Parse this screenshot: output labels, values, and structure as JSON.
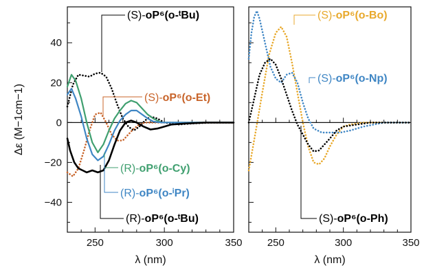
{
  "chart_data": [
    {
      "type": "line",
      "panel": "left",
      "xlabel": "λ (nm)",
      "ylabel": "Δε (M−1cm−1)",
      "xlim": [
        230,
        350
      ],
      "ylim": [
        -55,
        58
      ],
      "x_ticks": [
        "250",
        "300",
        "350"
      ],
      "y_ticks": [
        "40",
        "20",
        "0",
        "−20",
        "−40"
      ],
      "series": [
        {
          "key": "S_tBu",
          "color": "#000000",
          "style": "dotted",
          "annotation": {
            "prefix": "(S)-",
            "bold": "oP⁶(o-ᵗBu)",
            "color": "#000000"
          },
          "points": [
            [
              230,
              8
            ],
            [
              234,
              19
            ],
            [
              238,
              24
            ],
            [
              242,
              23.5
            ],
            [
              246,
              23
            ],
            [
              250,
              24.5
            ],
            [
              254,
              25
            ],
            [
              258,
              23
            ],
            [
              262,
              17
            ],
            [
              266,
              9
            ],
            [
              270,
              2
            ],
            [
              274,
              -2
            ],
            [
              278,
              -4
            ],
            [
              282,
              -2
            ],
            [
              286,
              1
            ],
            [
              290,
              3
            ],
            [
              295,
              2
            ],
            [
              300,
              0
            ],
            [
              310,
              -1
            ],
            [
              320,
              -0.5
            ],
            [
              335,
              0
            ],
            [
              350,
              0
            ]
          ]
        },
        {
          "key": "S_Et",
          "color": "#c8642a",
          "style": "dotted",
          "annotation": {
            "prefix": "(S)-",
            "bold": "oP⁶(o-Et)",
            "color": "#c8642a"
          },
          "points": [
            [
              230,
              -25
            ],
            [
              234,
              -27
            ],
            [
              238,
              -23
            ],
            [
              242,
              -14
            ],
            [
              246,
              -4
            ],
            [
              250,
              4
            ],
            [
              254,
              5
            ],
            [
              258,
              0
            ],
            [
              262,
              -6
            ],
            [
              266,
              -9
            ],
            [
              270,
              -9
            ],
            [
              274,
              -6
            ],
            [
              278,
              -3
            ],
            [
              282,
              -1
            ],
            [
              286,
              0
            ],
            [
              295,
              0
            ],
            [
              310,
              0
            ],
            [
              330,
              0
            ],
            [
              350,
              0
            ]
          ]
        },
        {
          "key": "R_Cy",
          "color": "#3f9f6f",
          "style": "solid",
          "annotation": {
            "prefix": "(R)-",
            "bold": "oP⁶(o-Cy)",
            "color": "#3f9f6f"
          },
          "points": [
            [
              230,
              18
            ],
            [
              233,
              24
            ],
            [
              236,
              21
            ],
            [
              240,
              12
            ],
            [
              244,
              0
            ],
            [
              248,
              -10
            ],
            [
              252,
              -15
            ],
            [
              256,
              -11
            ],
            [
              260,
              -4
            ],
            [
              264,
              2
            ],
            [
              268,
              6
            ],
            [
              272,
              9.5
            ],
            [
              276,
              11
            ],
            [
              280,
              10
            ],
            [
              284,
              7
            ],
            [
              288,
              4
            ],
            [
              292,
              2
            ],
            [
              298,
              0
            ],
            [
              310,
              0
            ],
            [
              330,
              0
            ],
            [
              350,
              0
            ]
          ]
        },
        {
          "key": "R_iPr",
          "color": "#3f86c4",
          "style": "solid",
          "annotation": {
            "prefix": "(R)-",
            "bold": "oP⁶(o-ⁱPr)",
            "color": "#3f86c4"
          },
          "points": [
            [
              230,
              14
            ],
            [
              233,
              17
            ],
            [
              236,
              12
            ],
            [
              240,
              3
            ],
            [
              244,
              -8
            ],
            [
              248,
              -16
            ],
            [
              252,
              -19
            ],
            [
              256,
              -17
            ],
            [
              260,
              -11
            ],
            [
              264,
              -4
            ],
            [
              268,
              1
            ],
            [
              272,
              4
            ],
            [
              276,
              6
            ],
            [
              280,
              6
            ],
            [
              284,
              4
            ],
            [
              288,
              2
            ],
            [
              292,
              0.5
            ],
            [
              298,
              0
            ],
            [
              310,
              0
            ],
            [
              330,
              0
            ],
            [
              350,
              0
            ]
          ]
        },
        {
          "key": "R_tBu",
          "color": "#000000",
          "style": "solid",
          "annotation": {
            "prefix": "(R)-",
            "bold": "oP⁶(o-ᵗBu)",
            "color": "#000000"
          },
          "points": [
            [
              230,
              -8
            ],
            [
              232,
              -14
            ],
            [
              235,
              -20
            ],
            [
              238,
              -23
            ],
            [
              241,
              -24
            ],
            [
              244,
              -25
            ],
            [
              248,
              -24
            ],
            [
              252,
              -25
            ],
            [
              256,
              -24
            ],
            [
              260,
              -19
            ],
            [
              264,
              -11
            ],
            [
              268,
              -4
            ],
            [
              272,
              0
            ],
            [
              276,
              1
            ],
            [
              280,
              0
            ],
            [
              285,
              -2
            ],
            [
              290,
              -3.5
            ],
            [
              295,
              -3
            ],
            [
              300,
              -2
            ],
            [
              305,
              -1
            ],
            [
              315,
              -0.5
            ],
            [
              330,
              0
            ],
            [
              350,
              0
            ]
          ]
        }
      ]
    },
    {
      "type": "line",
      "panel": "right",
      "xlabel": "λ (nm)",
      "xlim": [
        230,
        350
      ],
      "ylim": [
        -55,
        58
      ],
      "x_ticks": [
        "250",
        "300",
        "350"
      ],
      "series": [
        {
          "key": "S_Bo",
          "color": "#e8a92c",
          "style": "dotted",
          "annotation": {
            "prefix": "(S)-",
            "bold": "oP⁶(o-Bo)",
            "color": "#e8a92c"
          },
          "points": [
            [
              230,
              -24
            ],
            [
              235,
              -5
            ],
            [
              240,
              15
            ],
            [
              245,
              34
            ],
            [
              250,
              45
            ],
            [
              254,
              48
            ],
            [
              258,
              43
            ],
            [
              262,
              30
            ],
            [
              266,
              15
            ],
            [
              270,
              0
            ],
            [
              274,
              -12
            ],
            [
              278,
              -20
            ],
            [
              282,
              -21
            ],
            [
              286,
              -18
            ],
            [
              290,
              -12
            ],
            [
              295,
              -6
            ],
            [
              300,
              -2
            ],
            [
              305,
              -1
            ],
            [
              315,
              0
            ],
            [
              330,
              0
            ],
            [
              350,
              0
            ]
          ]
        },
        {
          "key": "S_Np",
          "color": "#3f86c4",
          "style": "dotted",
          "annotation": {
            "prefix": "(S)-",
            "bold": "oP⁶(o-Np)",
            "color": "#3f86c4"
          },
          "points": [
            [
              230,
              32
            ],
            [
              232,
              45
            ],
            [
              234,
              53
            ],
            [
              236,
              56
            ],
            [
              238,
              52
            ],
            [
              242,
              40
            ],
            [
              246,
              28
            ],
            [
              250,
              22
            ],
            [
              254,
              20
            ],
            [
              258,
              24
            ],
            [
              262,
              25
            ],
            [
              266,
              20
            ],
            [
              270,
              10
            ],
            [
              274,
              2
            ],
            [
              278,
              -3
            ],
            [
              284,
              -5
            ],
            [
              290,
              -5
            ],
            [
              298,
              -5
            ],
            [
              305,
              -4
            ],
            [
              315,
              -2
            ],
            [
              330,
              0
            ],
            [
              350,
              0
            ]
          ]
        },
        {
          "key": "S_Ph",
          "color": "#000000",
          "style": "dotted",
          "annotation": {
            "prefix": "(S)-",
            "bold": "oP⁶(o-Ph)",
            "color": "#000000"
          },
          "points": [
            [
              230,
              0
            ],
            [
              234,
              12
            ],
            [
              238,
              24
            ],
            [
              242,
              30
            ],
            [
              246,
              32
            ],
            [
              250,
              29
            ],
            [
              254,
              22
            ],
            [
              258,
              14
            ],
            [
              262,
              6
            ],
            [
              266,
              -1
            ],
            [
              270,
              -6
            ],
            [
              274,
              -11
            ],
            [
              278,
              -14.5
            ],
            [
              282,
              -14
            ],
            [
              286,
              -11
            ],
            [
              290,
              -8
            ],
            [
              295,
              -4
            ],
            [
              300,
              -2
            ],
            [
              310,
              -1
            ],
            [
              320,
              0
            ],
            [
              350,
              0
            ]
          ]
        }
      ]
    }
  ]
}
